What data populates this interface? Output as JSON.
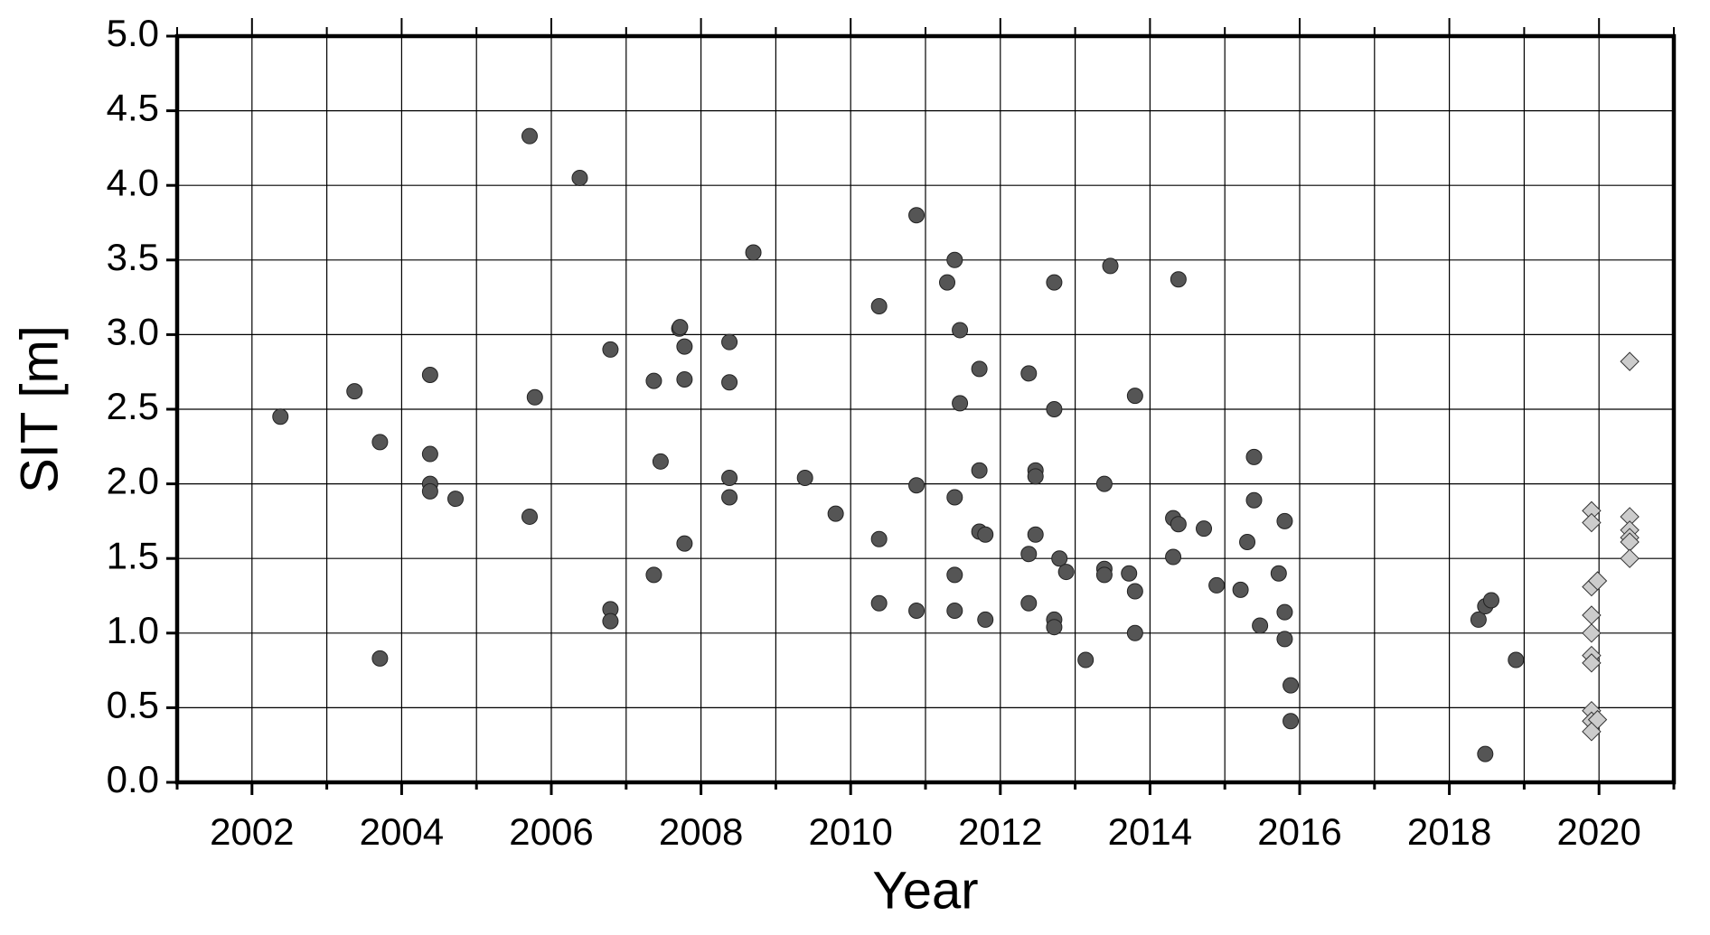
{
  "chart_data": {
    "type": "scatter",
    "x_label": "Year",
    "y_label": "SIT [m]",
    "xlim": [
      2001,
      2021
    ],
    "xticks": [
      2002,
      2004,
      2006,
      2008,
      2010,
      2012,
      2014,
      2016,
      2018,
      2020
    ],
    "x_minor_ticks": [
      2001,
      2003,
      2005,
      2007,
      2009,
      2011,
      2013,
      2015,
      2017,
      2019,
      2021
    ],
    "ylim": [
      0,
      5
    ],
    "yticks": [
      {
        "value": 0,
        "label": "0.0"
      },
      0.5,
      {
        "value": 1,
        "label": "1.0"
      },
      1.5,
      {
        "value": 2,
        "label": "2.0"
      },
      2.5,
      {
        "value": 3,
        "label": "3.0"
      },
      3.5,
      {
        "value": 4,
        "label": "4.0"
      },
      4.5,
      {
        "value": 5,
        "label": "5.0"
      }
    ],
    "grid": true,
    "series": [
      {
        "marker": "circle",
        "color": "#555555",
        "x": [
          2002.38,
          2003.37,
          2003.71,
          2003.71,
          2004.38,
          2004.38,
          2004.38,
          2004.38,
          2004.72,
          2005.71,
          2005.78,
          2005.71,
          2006.38,
          2006.79,
          2006.79,
          2006.79,
          2007.37,
          2007.46,
          2007.37,
          2007.71,
          2007.72,
          2007.78,
          2007.78,
          2007.78,
          2008.38,
          2008.38,
          2008.38,
          2008.38,
          2008.7,
          2009.39,
          2009.8,
          2010.38,
          2010.38,
          2010.38,
          2010.88,
          2010.88,
          2010.88,
          2011.29,
          2011.39,
          2011.46,
          2011.46,
          2011.39,
          2011.39,
          2011.39,
          2011.72,
          2011.72,
          2011.72,
          2011.8,
          2011.8,
          2012.38,
          2012.47,
          2012.47,
          2012.47,
          2012.38,
          2012.38,
          2012.72,
          2012.72,
          2012.79,
          2012.88,
          2012.72,
          2012.72,
          2013.14,
          2013.47,
          2013.39,
          2013.39,
          2013.39,
          2013.72,
          2013.8,
          2013.8,
          2013.8,
          2014.38,
          2014.31,
          2014.38,
          2014.31,
          2014.72,
          2014.89,
          2015.21,
          2015.3,
          2015.39,
          2015.39,
          2015.47,
          2015.72,
          2015.8,
          2015.8,
          2015.8,
          2015.88,
          2015.88,
          2018.39,
          2018.48,
          2018.56,
          2018.48,
          2018.89
        ],
        "values": [
          2.45,
          2.62,
          2.28,
          0.83,
          2.73,
          2.2,
          2.0,
          1.95,
          1.9,
          4.33,
          2.58,
          1.78,
          4.05,
          2.9,
          1.16,
          1.08,
          2.69,
          2.15,
          1.39,
          3.04,
          3.05,
          2.92,
          2.7,
          1.6,
          2.95,
          2.68,
          2.04,
          1.91,
          3.55,
          2.04,
          1.8,
          3.19,
          1.63,
          1.2,
          3.8,
          1.99,
          1.15,
          3.35,
          3.5,
          3.03,
          2.54,
          1.91,
          1.39,
          1.15,
          2.77,
          2.09,
          1.68,
          1.66,
          1.09,
          2.74,
          2.09,
          2.05,
          1.66,
          1.53,
          1.2,
          3.35,
          2.5,
          1.5,
          1.41,
          1.09,
          1.04,
          0.82,
          3.46,
          2.0,
          1.43,
          1.39,
          1.4,
          2.59,
          1.28,
          1.0,
          3.37,
          1.77,
          1.73,
          1.51,
          1.7,
          1.32,
          1.29,
          1.61,
          2.18,
          1.89,
          1.05,
          1.4,
          1.75,
          1.14,
          0.96,
          0.65,
          0.41,
          1.09,
          1.18,
          1.22,
          0.19,
          0.82
        ]
      },
      {
        "marker": "diamond",
        "color": "#cccccc",
        "x": [
          2019.9,
          2019.9,
          2019.9,
          2019.98,
          2019.9,
          2019.9,
          2019.9,
          2019.9,
          2019.9,
          2019.9,
          2019.98,
          2019.9,
          2020.41,
          2020.41,
          2020.41,
          2020.41,
          2020.41,
          2020.41
        ],
        "values": [
          1.82,
          1.74,
          1.31,
          1.35,
          1.12,
          1.0,
          0.85,
          0.8,
          0.48,
          0.41,
          0.42,
          0.34,
          2.82,
          1.78,
          1.69,
          1.64,
          1.61,
          1.5
        ]
      }
    ]
  }
}
